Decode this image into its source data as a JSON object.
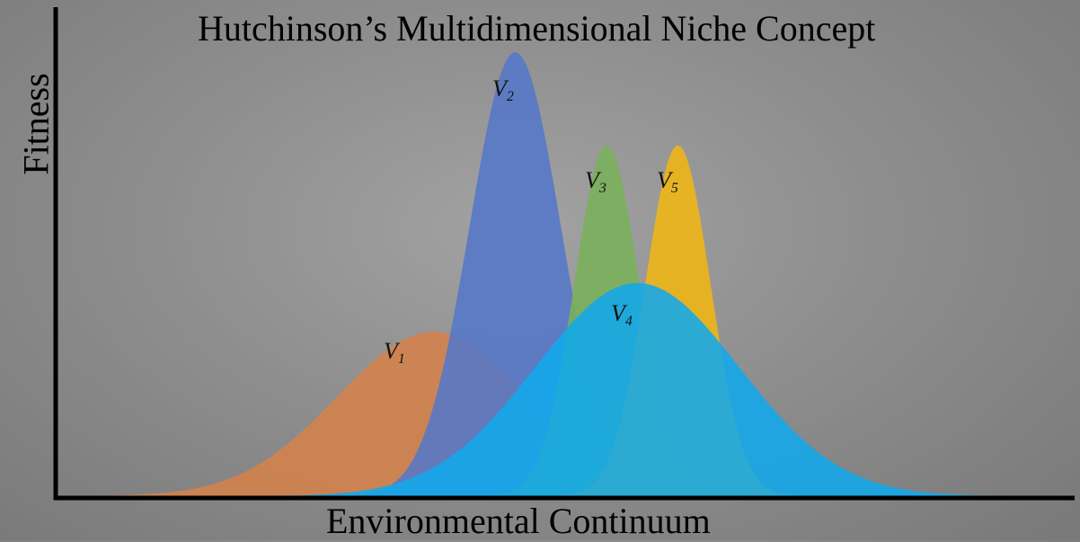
{
  "title": "Hutchinson’s Multidimensional Niche Concept",
  "x_axis_label": "Environmental Continuum",
  "y_axis_label": "Fitness",
  "curves": [
    {
      "base": "V",
      "sub": "1",
      "color": "#d5824b",
      "peak": 0.37,
      "center": 0.37,
      "spread": 0.095
    },
    {
      "base": "V",
      "sub": "2",
      "color": "#5578c8",
      "peak": 1.0,
      "center": 0.45,
      "spread": 0.045
    },
    {
      "base": "V",
      "sub": "3",
      "color": "#7ab05a",
      "peak": 0.79,
      "center": 0.54,
      "spread": 0.032
    },
    {
      "base": "V",
      "sub": "5",
      "color": "#f0b614",
      "peak": 0.79,
      "center": 0.61,
      "spread": 0.032
    },
    {
      "base": "V",
      "sub": "4",
      "color": "#12a8ec",
      "peak": 0.48,
      "center": 0.57,
      "spread": 0.1
    }
  ]
}
